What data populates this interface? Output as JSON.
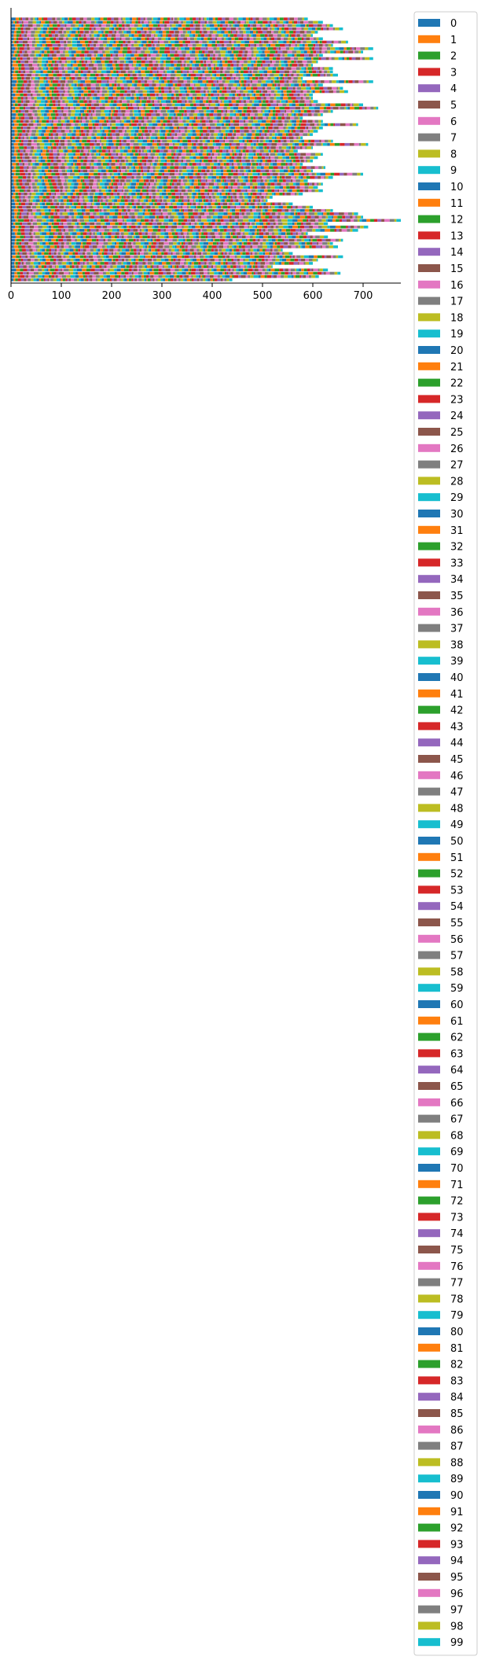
{
  "chart_data": {
    "type": "bar",
    "orientation": "horizontal",
    "stacked": true,
    "title": "",
    "xlabel": "",
    "ylabel": "",
    "xlim": [
      0,
      775
    ],
    "xticks": [
      0,
      100,
      200,
      300,
      400,
      500,
      600,
      700
    ],
    "n_categories": 80,
    "grid": false,
    "legend_position": "right, outside plot (upper)",
    "series_names": [
      "0",
      "1",
      "2",
      "3",
      "4",
      "5",
      "6",
      "7",
      "8",
      "9",
      "10",
      "11",
      "12",
      "13",
      "14",
      "15",
      "16",
      "17",
      "18",
      "19",
      "20",
      "21",
      "22",
      "23",
      "24",
      "25",
      "26",
      "27",
      "28",
      "29",
      "30",
      "31",
      "32",
      "33",
      "34",
      "35",
      "36",
      "37",
      "38",
      "39",
      "40",
      "41",
      "42",
      "43",
      "44",
      "45",
      "46",
      "47",
      "48",
      "49",
      "50",
      "51",
      "52",
      "53",
      "54",
      "55",
      "56",
      "57",
      "58",
      "59",
      "60",
      "61",
      "62",
      "63",
      "64",
      "65",
      "66",
      "67",
      "68",
      "69",
      "70",
      "71",
      "72",
      "73",
      "74",
      "75",
      "76",
      "77",
      "78",
      "79",
      "80",
      "81",
      "82",
      "83",
      "84",
      "85",
      "86",
      "87",
      "88",
      "89",
      "90",
      "91",
      "92",
      "93",
      "94",
      "95",
      "96",
      "97",
      "98",
      "99"
    ],
    "palette": [
      "#1f77b4",
      "#ff7f0e",
      "#2ca02c",
      "#d62728",
      "#9467bd",
      "#8c564b",
      "#e377c2",
      "#7f7f7f",
      "#bcbd22",
      "#17becf"
    ],
    "row_totals": [
      440,
      612,
      655,
      630,
      520,
      600,
      610,
      660,
      560,
      540,
      650,
      640,
      660,
      630,
      590,
      690,
      710,
      630,
      775,
      700,
      690,
      640,
      600,
      560,
      510,
      520,
      580,
      620,
      610,
      620,
      590,
      640,
      700,
      600,
      625,
      580,
      600,
      610,
      620,
      570,
      600,
      710,
      640,
      580,
      600,
      610,
      620,
      690,
      620,
      580,
      620,
      640,
      730,
      700,
      610,
      600,
      600,
      670,
      660,
      620,
      720,
      580,
      650,
      640,
      640,
      600,
      610,
      720,
      620,
      700,
      720,
      640,
      670,
      620,
      600,
      610,
      660,
      640,
      620,
      590
    ]
  }
}
